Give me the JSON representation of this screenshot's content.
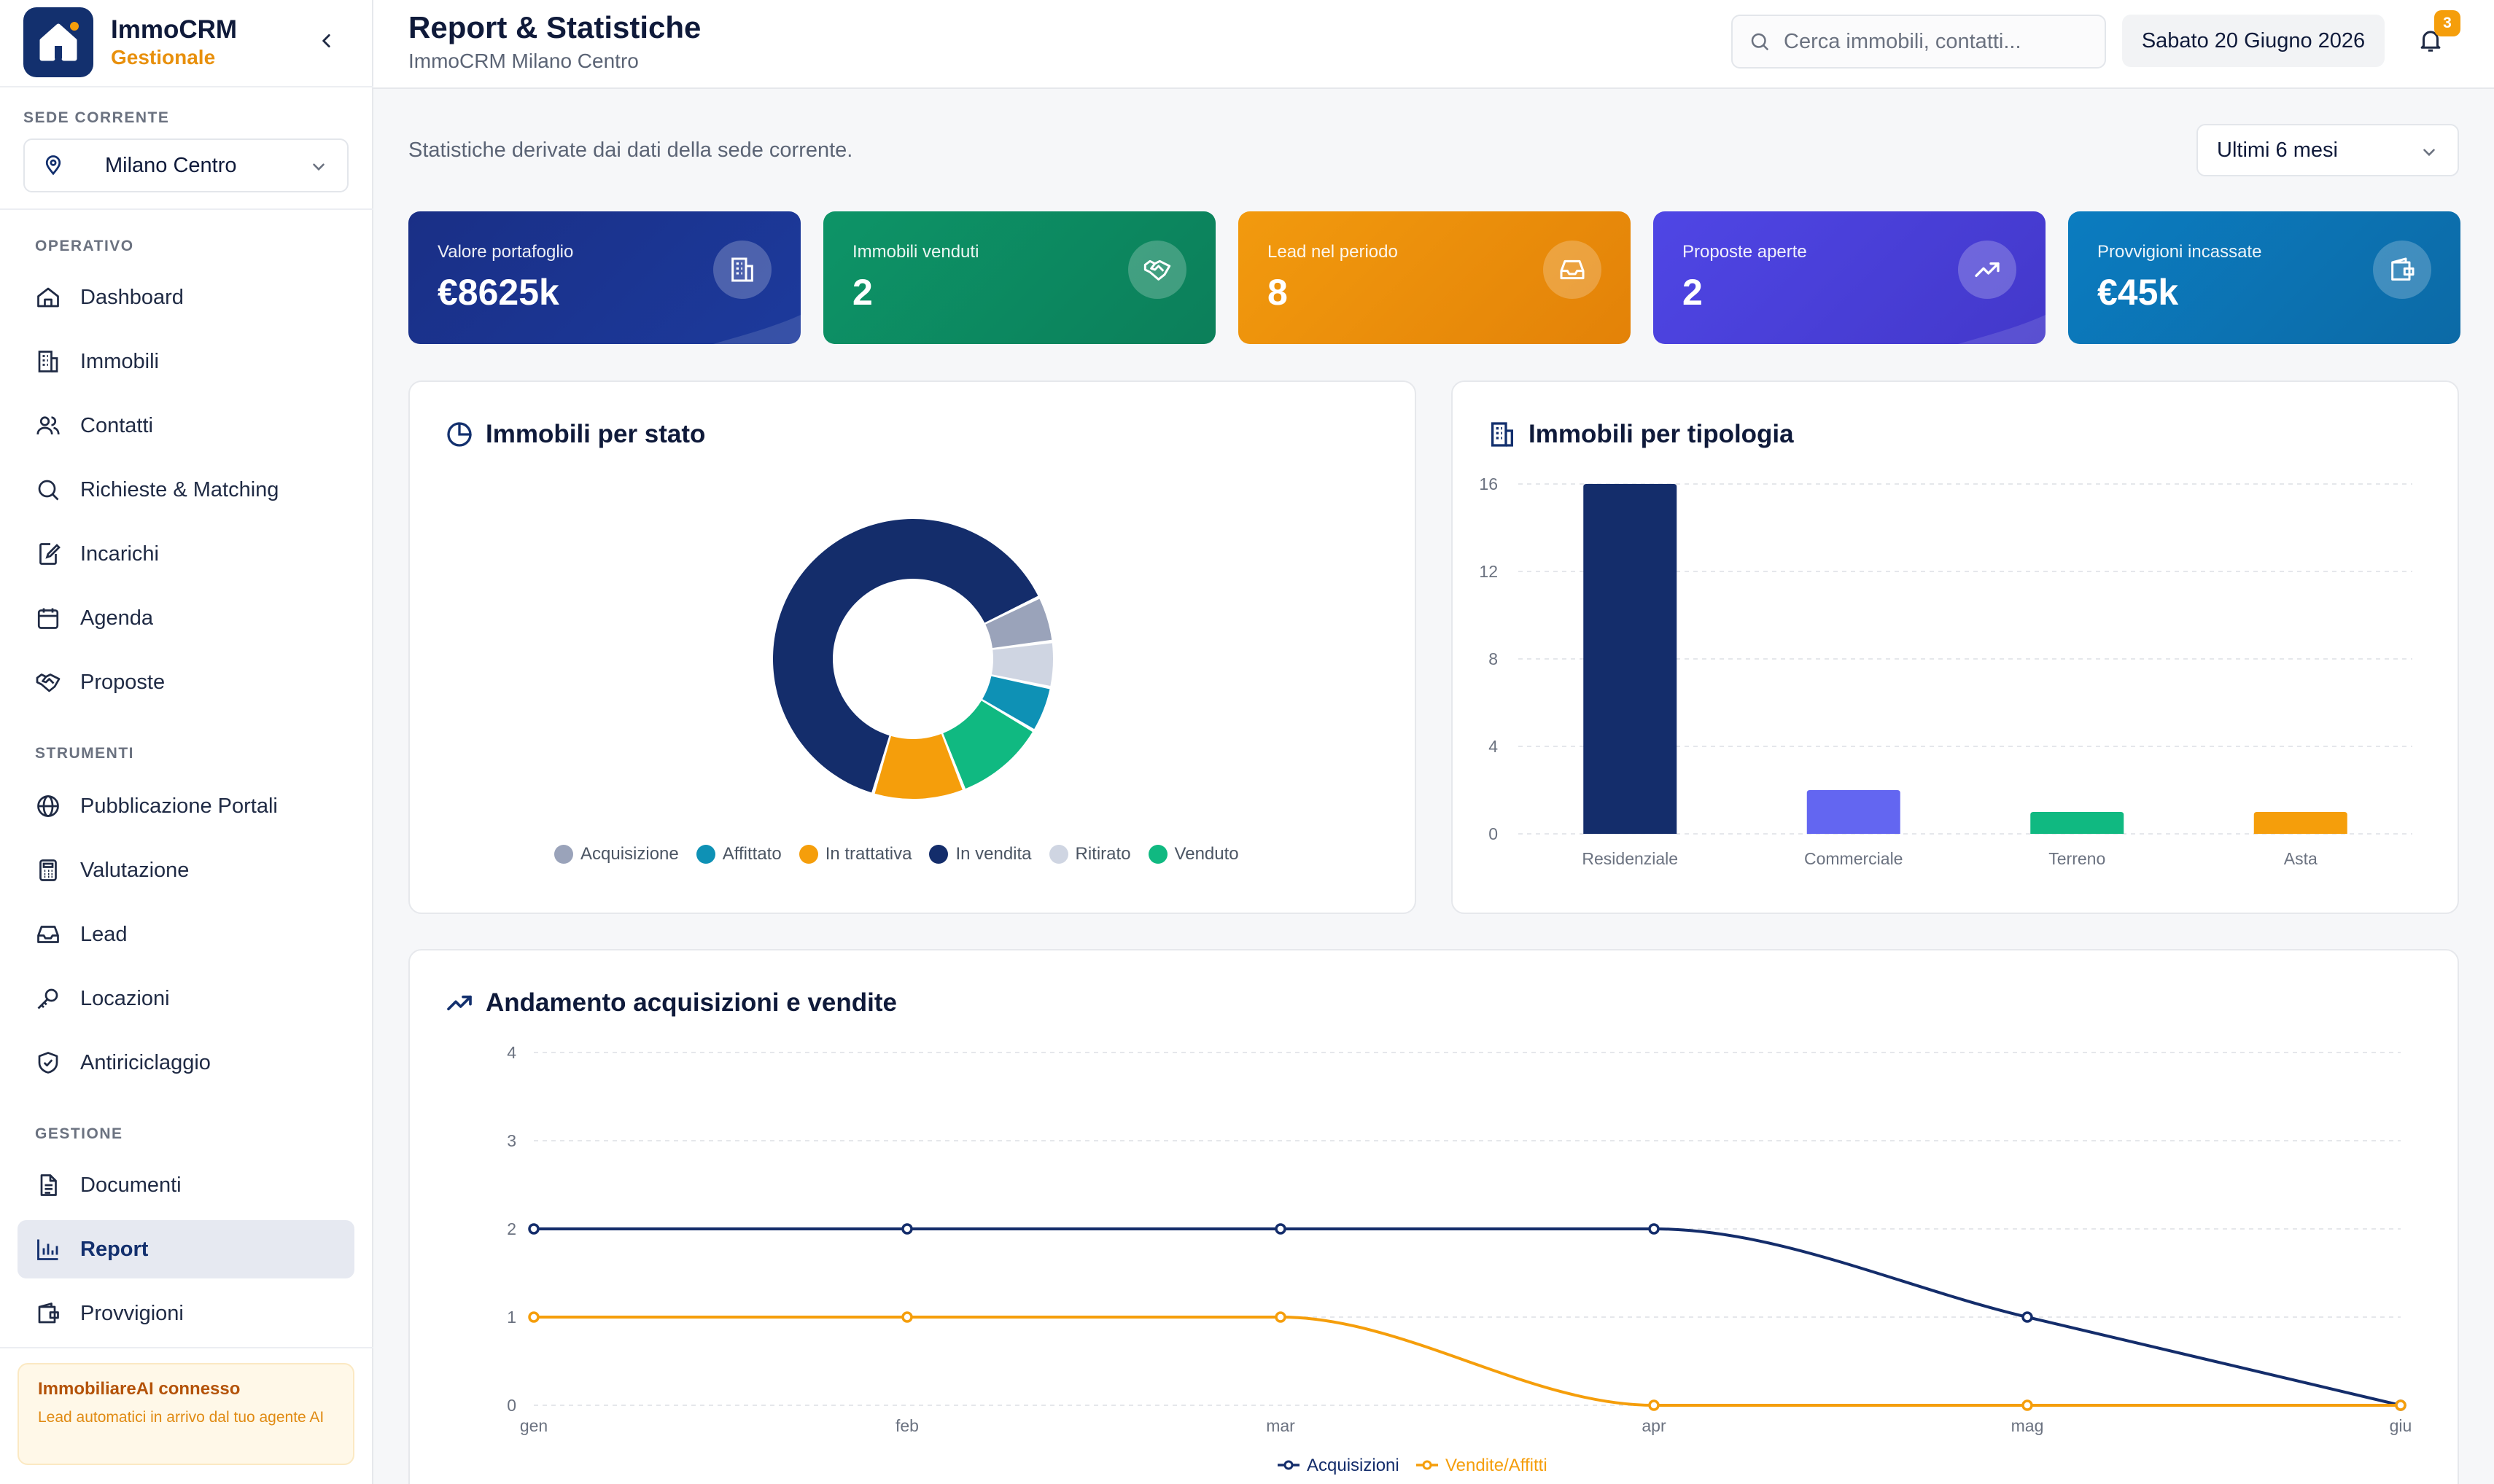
{
  "app": {
    "name": "ImmoCRM",
    "subtitle": "Gestionale",
    "icon": "house-icon"
  },
  "sidebar": {
    "sede_label": "SEDE CORRENTE",
    "sede_value": "Milano Centro",
    "sections": {
      "operativo": "OPERATIVO",
      "strumenti": "STRUMENTI",
      "gestione": "GESTIONE"
    },
    "items": [
      {
        "label": "Dashboard",
        "icon": "home-icon"
      },
      {
        "label": "Immobili",
        "icon": "building-icon"
      },
      {
        "label": "Contatti",
        "icon": "users-icon"
      },
      {
        "label": "Richieste & Matching",
        "icon": "search-icon"
      },
      {
        "label": "Incarichi",
        "icon": "edit-document-icon"
      },
      {
        "label": "Agenda",
        "icon": "calendar-icon"
      },
      {
        "label": "Proposte",
        "icon": "handshake-icon"
      },
      {
        "label": "Pubblicazione Portali",
        "icon": "globe-icon"
      },
      {
        "label": "Valutazione",
        "icon": "calculator-icon"
      },
      {
        "label": "Lead",
        "icon": "inbox-icon"
      },
      {
        "label": "Locazioni",
        "icon": "key-icon"
      },
      {
        "label": "Antiriciclaggio",
        "icon": "shield-check-icon"
      },
      {
        "label": "Documenti",
        "icon": "document-icon"
      },
      {
        "label": "Report",
        "icon": "bar-chart-icon",
        "active": true
      },
      {
        "label": "Provvigioni",
        "icon": "wallet-icon"
      }
    ],
    "ai_box": {
      "title": "ImmobiliareAI connesso",
      "description": "Lead automatici in arrivo dal tuo agente AI"
    }
  },
  "header": {
    "title": "Report & Statistiche",
    "subtitle": "ImmoCRM Milano Centro",
    "search_placeholder": "Cerca immobili, contatti...",
    "date": "Sabato 20 Giugno 2026",
    "notifications_count": "3"
  },
  "main": {
    "intro": "Statistiche derivate dai dati della sede corrente.",
    "period": "Ultimi 6 mesi",
    "kpis": [
      {
        "label": "Valore portafoglio",
        "value": "€8625k",
        "icon": "building-icon",
        "color_from": "#1a2f86",
        "color_to": "#1c3a9c"
      },
      {
        "label": "Immobili venduti",
        "value": "2",
        "icon": "handshake-icon",
        "color_from": "#0d9467",
        "color_to": "#0c7f5a"
      },
      {
        "label": "Lead nel periodo",
        "value": "8",
        "icon": "inbox-icon",
        "color_from": "#f29a0e",
        "color_to": "#e38208"
      },
      {
        "label": "Proposte aperte",
        "value": "2",
        "icon": "trending-up-icon",
        "color_from": "#4f46e5",
        "color_to": "#4338ca"
      },
      {
        "label": "Provvigioni incassate",
        "value": "€45k",
        "icon": "wallet-icon",
        "color_from": "#0b7cc0",
        "color_to": "#0c6aa6"
      }
    ],
    "cards": {
      "stato_title": "Immobili per stato",
      "tipologia_title": "Immobili per tipologia",
      "andamento_title": "Andamento acquisizioni e vendite"
    }
  },
  "chart_data": [
    {
      "type": "pie",
      "title": "Immobili per stato",
      "categories": [
        "Acquisizione",
        "Affittato",
        "In trattativa",
        "In vendita",
        "Ritirato",
        "Venduto"
      ],
      "values": [
        1,
        1,
        2,
        12,
        1,
        2
      ],
      "colors": [
        "#9aa3ba",
        "#0e91b5",
        "#f59e0b",
        "#142d6b",
        "#cfd5e2",
        "#10b981"
      ],
      "draw_order": [
        "Acquisizione",
        "Ritirato",
        "Affittato",
        "Venduto",
        "In trattativa",
        "In vendita"
      ]
    },
    {
      "type": "bar",
      "title": "Immobili per tipologia",
      "categories": [
        "Residenziale",
        "Commerciale",
        "Terreno",
        "Asta"
      ],
      "values": [
        16,
        2,
        1,
        1
      ],
      "colors": [
        "#142d6b",
        "#6366f1",
        "#10b981",
        "#f59e0b"
      ],
      "ylim": [
        0,
        16
      ],
      "yticks": [
        0,
        4,
        8,
        12,
        16
      ],
      "grid": true
    },
    {
      "type": "line",
      "title": "Andamento acquisizioni e vendite",
      "categories": [
        "gen",
        "feb",
        "mar",
        "apr",
        "mag",
        "giu"
      ],
      "series": [
        {
          "name": "Acquisizioni",
          "values": [
            2,
            2,
            2,
            2,
            1,
            0
          ],
          "color": "#142d6b"
        },
        {
          "name": "Vendite/Affitti",
          "values": [
            1,
            1,
            1,
            0,
            0,
            0
          ],
          "color": "#f59e0b"
        }
      ],
      "ylim": [
        0,
        4
      ],
      "yticks": [
        0,
        1,
        2,
        3,
        4
      ],
      "grid": true,
      "legend_position": "bottom"
    }
  ]
}
